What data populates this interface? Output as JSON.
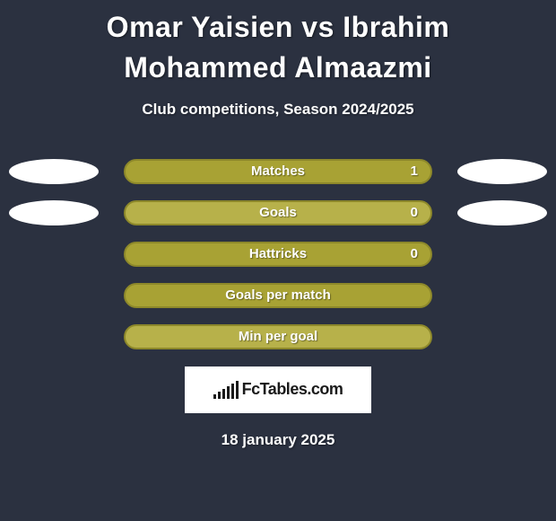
{
  "title": "Omar Yaisien vs Ibrahim Mohammed Almaazmi",
  "subtitle": "Club competitions, Season 2024/2025",
  "date": "18 january 2025",
  "logo_text": "FcTables.com",
  "colors": {
    "background": "#2b3140",
    "olive_fill": "#a8a234",
    "olive_border": "#938e2d",
    "olive_light": "#b7b14a",
    "white_ellipse": "#ffffff",
    "text": "#ffffff"
  },
  "stats": [
    {
      "label": "Matches",
      "value": "1",
      "bar_color": "#a8a234",
      "bar_border": "#8d882a",
      "has_value": true,
      "left_ellipse_color": "#ffffff",
      "right_ellipse_color": "#ffffff",
      "show_ellipses": true
    },
    {
      "label": "Goals",
      "value": "0",
      "bar_color": "#b7b14a",
      "bar_border": "#8d882a",
      "has_value": true,
      "left_ellipse_color": "#ffffff",
      "right_ellipse_color": "#ffffff",
      "show_ellipses": true
    },
    {
      "label": "Hattricks",
      "value": "0",
      "bar_color": "#a8a234",
      "bar_border": "#8d882a",
      "has_value": true,
      "show_ellipses": false
    },
    {
      "label": "Goals per match",
      "value": "",
      "bar_color": "#a8a234",
      "bar_border": "#8d882a",
      "has_value": false,
      "show_ellipses": false
    },
    {
      "label": "Min per goal",
      "value": "",
      "bar_color": "#b7b14a",
      "bar_border": "#8d882a",
      "has_value": false,
      "show_ellipses": false
    }
  ],
  "logo_bar_heights": [
    5,
    8,
    11,
    14,
    17,
    20
  ]
}
